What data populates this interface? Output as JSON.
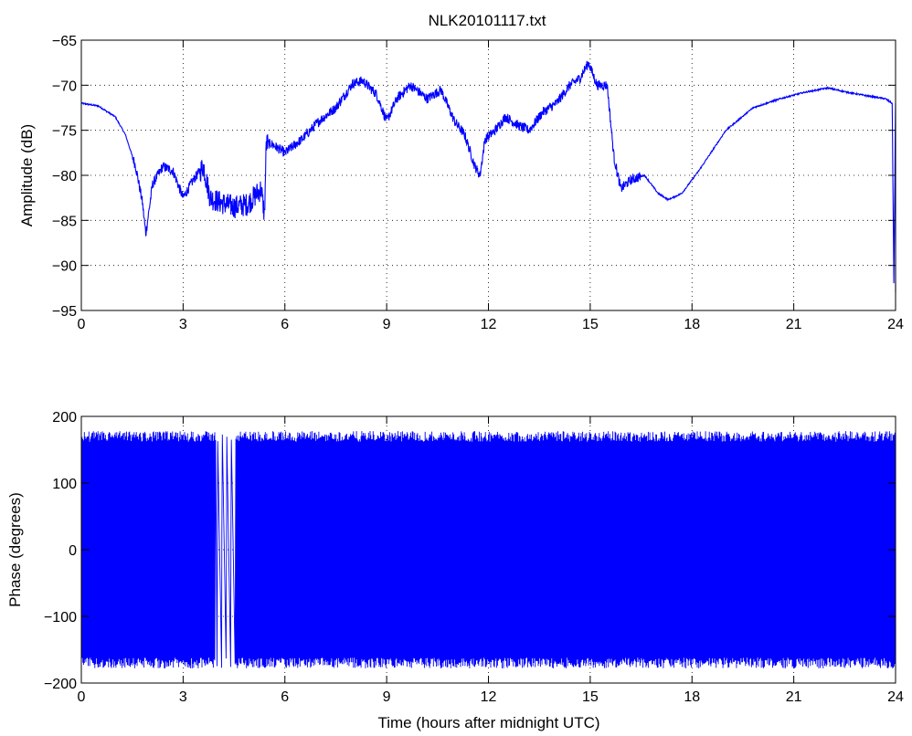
{
  "figure": {
    "title": "NLK20101117.txt",
    "line_color": "#0000ff",
    "grid": "dotted",
    "background": "#ffffff"
  },
  "chart_data": [
    {
      "type": "line",
      "title": "NLK20101117.txt",
      "xlabel": "",
      "ylabel": "Amplitude (dB)",
      "xlim": [
        0,
        24
      ],
      "ylim": [
        -95,
        -65
      ],
      "xticks": [
        0,
        3,
        6,
        9,
        12,
        15,
        18,
        21,
        24
      ],
      "yticks": [
        -95,
        -90,
        -85,
        -80,
        -75,
        -70,
        -65
      ],
      "grid": true,
      "series": [
        {
          "color": "#0000ff",
          "x": [
            0,
            0.5,
            1.0,
            1.3,
            1.6,
            1.8,
            1.9,
            2.1,
            2.4,
            2.7,
            3.0,
            3.3,
            3.6,
            3.8,
            4.1,
            4.5,
            4.9,
            5.3,
            5.4,
            5.45,
            5.6,
            6.0,
            6.5,
            7.0,
            7.5,
            8.0,
            8.3,
            8.7,
            9.0,
            9.3,
            9.7,
            10.2,
            10.6,
            11.0,
            11.3,
            11.6,
            11.75,
            11.9,
            12.2,
            12.5,
            12.9,
            13.2,
            13.6,
            14.0,
            14.4,
            14.7,
            14.95,
            15.2,
            15.5,
            15.7,
            15.9,
            16.2,
            16.6,
            17.0,
            17.3,
            17.7,
            18.2,
            19.0,
            19.8,
            20.6,
            21.3,
            22.0,
            22.6,
            23.2,
            23.7,
            23.9,
            23.95,
            24.0
          ],
          "y": [
            -72,
            -72.3,
            -73.5,
            -75.5,
            -79,
            -83,
            -86.5,
            -81,
            -79,
            -79.5,
            -82.5,
            -80.5,
            -79,
            -82.5,
            -83,
            -83.5,
            -83.2,
            -81.5,
            -84.5,
            -76.5,
            -76.5,
            -77.5,
            -76,
            -74,
            -72.5,
            -69.8,
            -69.5,
            -71,
            -74,
            -71.5,
            -70,
            -71.5,
            -70.5,
            -74,
            -75.5,
            -79,
            -80,
            -76,
            -75,
            -73.5,
            -74.5,
            -75,
            -73,
            -72,
            -70,
            -69.2,
            -67.5,
            -70,
            -70,
            -78,
            -81.5,
            -80.5,
            -80,
            -82,
            -82.7,
            -82,
            -79.5,
            -75,
            -72.5,
            -71.5,
            -70.8,
            -70.3,
            -70.8,
            -71.2,
            -71.5,
            -72,
            -92,
            -72
          ]
        }
      ]
    },
    {
      "type": "line",
      "title": "",
      "xlabel": "Time (hours after midnight UTC)",
      "ylabel": "Phase (degrees)",
      "xlim": [
        0,
        24
      ],
      "ylim": [
        -200,
        200
      ],
      "xticks": [
        0,
        3,
        6,
        9,
        12,
        15,
        18,
        21,
        24
      ],
      "yticks": [
        -200,
        -100,
        0,
        100,
        200
      ],
      "grid": true,
      "phase_wrap": {
        "min": -180,
        "max": 180,
        "typical_extent": 170,
        "wraps_per_hour": 45
      },
      "series": [
        {
          "color": "#0000ff"
        }
      ]
    }
  ]
}
